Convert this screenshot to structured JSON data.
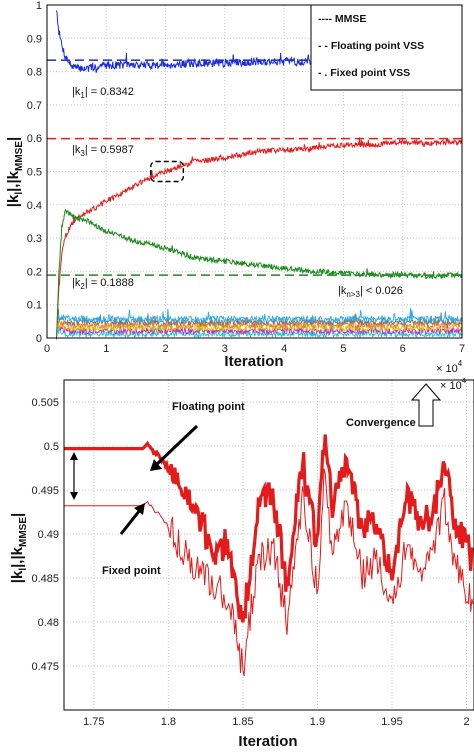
{
  "chart_data": [
    {
      "type": "line",
      "xlabel": "Iteration",
      "ylabel": "|kₗ|,|kₘₘₛₑ|",
      "ylabel_parts": {
        "main": "|k",
        "sub1": "l",
        "mid": "|,|k",
        "sub2": "MMSE",
        "end": "|"
      },
      "x_multiplier": "× 10⁴",
      "x_multiplier_parts": {
        "base": "× 10",
        "exp": "4"
      },
      "xlim": [
        0,
        7
      ],
      "ylim": [
        0,
        1
      ],
      "x_ticks": [
        "0",
        "1",
        "2",
        "3",
        "4",
        "5",
        "6",
        "7"
      ],
      "y_ticks": [
        "0",
        "0.1",
        "0.2",
        "0.3",
        "0.4",
        "0.5",
        "0.6",
        "0.7",
        "0.8",
        "0.9",
        "1"
      ],
      "grid": true,
      "legend_position": "top-right",
      "legend": [
        {
          "label": "MMSE",
          "style": "dotted"
        },
        {
          "label": "Floating point VSS",
          "style": "dashed"
        },
        {
          "label": "Fixed point VSS",
          "style": "dash-dot"
        }
      ],
      "legend_prefixes": [
        "----",
        "- -",
        "- ."
      ],
      "annotations": [
        {
          "text": "|k₁| = 0.8342",
          "parts": {
            "a": "|k",
            "sub": "1",
            "b": "| = 0.8342"
          },
          "x": 0.3,
          "y": 0.79
        },
        {
          "text": "|k₃| = 0.5987",
          "parts": {
            "a": "|k",
            "sub": "3",
            "b": "| = 0.5987"
          },
          "x": 0.3,
          "y": 0.56
        },
        {
          "text": "|k₂| = 0.1888",
          "parts": {
            "a": "|k",
            "sub": "2",
            "b": "| = 0.1888"
          },
          "x": 0.3,
          "y": 0.16
        },
        {
          "text": "|kₙ₍₃| < 0.026",
          "parts": {
            "a": "|k",
            "sub": "n>3",
            "b": "| < 0.026"
          },
          "x": 5.3,
          "y": 0.085
        }
      ],
      "mmse_levels": [
        {
          "name": "k1",
          "value": 0.8342,
          "color": "#2b3fd6"
        },
        {
          "name": "k3",
          "value": 0.5987,
          "color": "#e02020"
        },
        {
          "name": "k2",
          "value": 0.1888,
          "color": "#1f8a1f"
        }
      ],
      "series": [
        {
          "color": "#1a2bd9",
          "x": [
            0.16,
            0.2,
            0.25,
            0.3,
            0.4,
            0.5,
            0.7,
            1.0,
            1.5,
            2.0,
            2.5,
            3.0,
            3.5,
            4.0,
            4.5,
            5.0,
            5.5,
            6.0,
            6.5,
            7.0
          ],
          "y": [
            0.99,
            0.92,
            0.88,
            0.85,
            0.82,
            0.81,
            0.81,
            0.82,
            0.82,
            0.82,
            0.825,
            0.825,
            0.83,
            0.83,
            0.83,
            0.83,
            0.83,
            0.835,
            0.83,
            0.835
          ]
        },
        {
          "color": "#e02020",
          "x": [
            0.16,
            0.2,
            0.25,
            0.3,
            0.4,
            0.5,
            0.7,
            1.0,
            1.5,
            2.0,
            2.5,
            3.0,
            3.5,
            4.0,
            4.5,
            5.0,
            5.5,
            6.0,
            6.5,
            7.0
          ],
          "y": [
            0.0,
            0.15,
            0.25,
            0.3,
            0.34,
            0.36,
            0.38,
            0.41,
            0.46,
            0.5,
            0.53,
            0.54,
            0.56,
            0.565,
            0.57,
            0.58,
            0.58,
            0.59,
            0.585,
            0.59
          ]
        },
        {
          "color": "#1f8a1f",
          "x": [
            0.16,
            0.2,
            0.25,
            0.3,
            0.4,
            0.5,
            0.7,
            1.0,
            1.5,
            2.0,
            2.5,
            3.0,
            3.5,
            4.0,
            4.5,
            5.0,
            5.5,
            6.0,
            6.5,
            7.0
          ],
          "y": [
            0.0,
            0.2,
            0.33,
            0.38,
            0.37,
            0.36,
            0.35,
            0.32,
            0.29,
            0.27,
            0.24,
            0.23,
            0.22,
            0.21,
            0.2,
            0.195,
            0.19,
            0.19,
            0.185,
            0.19
          ]
        }
      ],
      "noise_colors": [
        "#18c8c8",
        "#cc22cc",
        "#d4c400",
        "#ee7722",
        "#777777",
        "#22aaee"
      ],
      "dashed_box": {
        "x": [
          1.75,
          2.3
        ],
        "y": [
          0.47,
          0.53
        ]
      }
    },
    {
      "type": "line",
      "xlabel": "Iteration",
      "ylabel": "|kₗ|,|kₘₘₛₑ|",
      "x_multiplier_parts": {
        "base": "× 10",
        "exp": "4"
      },
      "xlim": [
        1.73,
        2.005
      ],
      "ylim": [
        0.47,
        0.5075
      ],
      "x_ticks": [
        "1.75",
        "1.8",
        "1.85",
        "1.9",
        "1.95",
        "2"
      ],
      "y_ticks": [
        "0.475",
        "0.48",
        "0.485",
        "0.49",
        "0.495",
        "0.5",
        "0.505"
      ],
      "grid": true,
      "annotations": [
        "Floating point",
        "Fixed point",
        "Convergence"
      ],
      "series": [
        {
          "name": "Floating point",
          "color": "#e41b1b",
          "x": [
            1.73,
            1.783,
            1.786,
            1.8,
            1.815,
            1.83,
            1.84,
            1.85,
            1.86,
            1.87,
            1.88,
            1.89,
            1.9,
            1.905,
            1.91,
            1.92,
            1.93,
            1.94,
            1.95,
            1.96,
            1.97,
            1.98,
            1.985,
            1.99,
            2.0,
            2.005
          ],
          "y": [
            0.4997,
            0.4997,
            0.5003,
            0.4975,
            0.4935,
            0.488,
            0.489,
            0.4795,
            0.493,
            0.4945,
            0.484,
            0.4985,
            0.4885,
            0.502,
            0.493,
            0.4985,
            0.4905,
            0.4915,
            0.4855,
            0.4945,
            0.4905,
            0.494,
            0.4995,
            0.4925,
            0.4885,
            0.4865
          ]
        },
        {
          "name": "Fixed point",
          "color": "#e41b1b",
          "x": [
            1.73,
            1.783,
            1.786,
            1.8,
            1.815,
            1.83,
            1.84,
            1.85,
            1.86,
            1.87,
            1.88,
            1.89,
            1.9,
            1.905,
            1.91,
            1.92,
            1.93,
            1.94,
            1.95,
            1.96,
            1.97,
            1.98,
            1.985,
            1.99,
            2.0,
            2.005
          ],
          "y": [
            0.4932,
            0.4932,
            0.4937,
            0.491,
            0.4865,
            0.484,
            0.483,
            0.4745,
            0.487,
            0.4885,
            0.4795,
            0.494,
            0.4835,
            0.4975,
            0.4875,
            0.493,
            0.4855,
            0.487,
            0.481,
            0.4895,
            0.4855,
            0.4895,
            0.494,
            0.4875,
            0.4835,
            0.482
          ]
        }
      ]
    }
  ]
}
